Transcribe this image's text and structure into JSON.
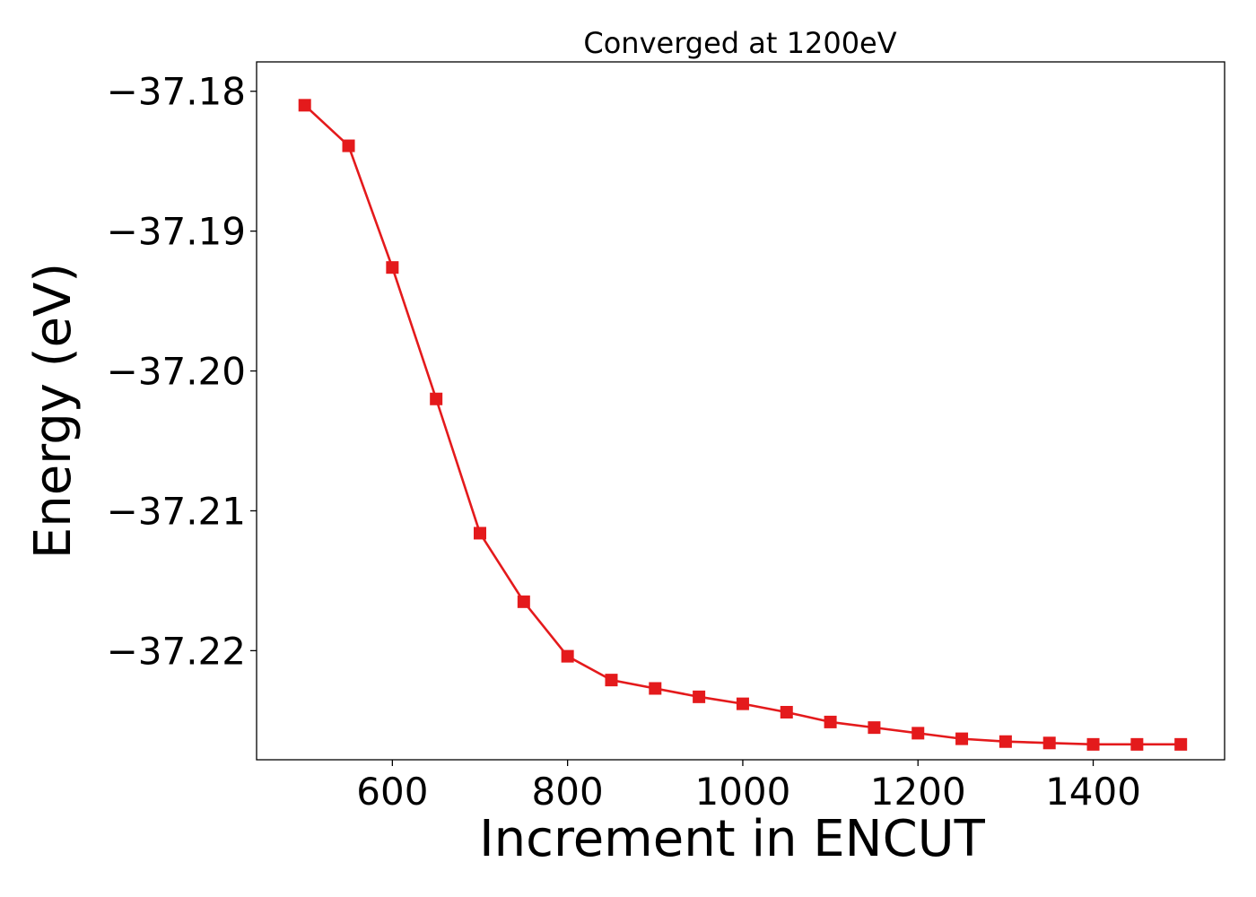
{
  "chart_data": {
    "type": "line",
    "title": "Converged at 1200eV",
    "xlabel": "Increment in ENCUT",
    "ylabel": "Energy (eV)",
    "x_ticks": [
      600,
      800,
      1000,
      1200,
      1400
    ],
    "x_tick_labels": [
      "600",
      "800",
      "1000",
      "1200",
      "1400"
    ],
    "y_ticks": [
      -37.18,
      -37.19,
      -37.2,
      -37.21,
      -37.22
    ],
    "y_tick_labels": [
      "−37.18",
      "−37.19",
      "−37.20",
      "−37.21",
      "−37.22"
    ],
    "xlim": [
      445,
      1550
    ],
    "ylim": [
      -37.2278,
      -37.1779
    ],
    "grid": false,
    "series": [
      {
        "color": "#e41a1c",
        "marker": "square",
        "x": [
          500,
          550,
          600,
          650,
          700,
          750,
          800,
          850,
          900,
          950,
          1000,
          1050,
          1100,
          1150,
          1200,
          1250,
          1300,
          1350,
          1400,
          1450,
          1500
        ],
        "y": [
          -37.181,
          -37.1839,
          -37.1926,
          -37.202,
          -37.2116,
          -37.2165,
          -37.2204,
          -37.2221,
          -37.2227,
          -37.2233,
          -37.2238,
          -37.2244,
          -37.2251,
          -37.2255,
          -37.2259,
          -37.2263,
          -37.2265,
          -37.2266,
          -37.2267,
          -37.2267,
          -37.2267
        ]
      }
    ]
  }
}
